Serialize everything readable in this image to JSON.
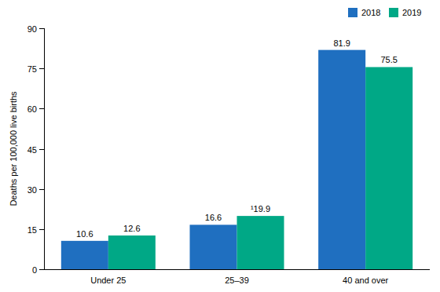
{
  "chart_data": {
    "type": "bar",
    "y_label": "Deaths per 100,000 live births",
    "categories": [
      "Under 25",
      "25–39",
      "40 and over"
    ],
    "series": [
      {
        "name": "2018",
        "color": "#1f6fc0",
        "values": [
          10.6,
          16.6,
          81.9
        ]
      },
      {
        "name": "2019",
        "color": "#00a886",
        "values": [
          12.6,
          19.9,
          75.5
        ],
        "value_labels": [
          "12.6",
          "¹19.9",
          "75.5"
        ]
      }
    ],
    "ylim": [
      0,
      90
    ],
    "yticks": [
      0,
      15,
      30,
      45,
      60,
      75,
      90
    ],
    "grid": false,
    "legend": "upper right",
    "data_labels": true
  }
}
